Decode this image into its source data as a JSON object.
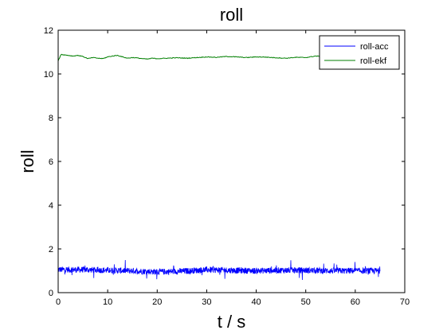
{
  "chart_data": {
    "type": "line",
    "title": "roll",
    "xlabel": "t / s",
    "ylabel": "roll",
    "xlim": [
      0,
      70
    ],
    "ylim": [
      0,
      12
    ],
    "xticks": [
      0,
      10,
      20,
      30,
      40,
      50,
      60,
      70
    ],
    "yticks": [
      0,
      2,
      4,
      6,
      8,
      10,
      12
    ],
    "grid": false,
    "legend": "top-right",
    "series": [
      {
        "name": "roll-acc",
        "color": "#0000ff",
        "noise": true,
        "x": [
          0,
          5,
          10,
          15,
          20,
          25,
          30,
          35,
          40,
          45,
          50,
          55,
          60,
          65
        ],
        "y": [
          1.05,
          1.05,
          1.02,
          1.0,
          0.95,
          0.98,
          1.05,
          1.02,
          1.0,
          1.02,
          1.02,
          1.0,
          1.0,
          1.0
        ]
      },
      {
        "name": "roll-ekf",
        "color": "#007f00",
        "noise": false,
        "x": [
          0,
          0.3,
          0.6,
          1,
          2,
          3,
          4,
          5,
          6,
          7,
          8,
          9,
          10,
          11,
          12,
          13,
          14,
          15,
          16,
          17,
          18,
          19,
          20,
          22,
          24,
          26,
          28,
          30,
          32,
          34,
          36,
          38,
          40,
          42,
          44,
          46,
          48,
          50,
          52,
          54,
          56,
          58,
          60,
          62,
          64,
          65
        ],
        "y": [
          10.6,
          10.75,
          10.9,
          10.88,
          10.85,
          10.82,
          10.85,
          10.8,
          10.7,
          10.75,
          10.72,
          10.7,
          10.78,
          10.82,
          10.85,
          10.78,
          10.72,
          10.75,
          10.73,
          10.7,
          10.68,
          10.72,
          10.7,
          10.72,
          10.74,
          10.72,
          10.75,
          10.78,
          10.76,
          10.8,
          10.78,
          10.75,
          10.78,
          10.77,
          10.74,
          10.72,
          10.76,
          10.75,
          10.82,
          10.78,
          10.8,
          10.79,
          10.8,
          10.78,
          10.8,
          10.8
        ]
      }
    ]
  }
}
